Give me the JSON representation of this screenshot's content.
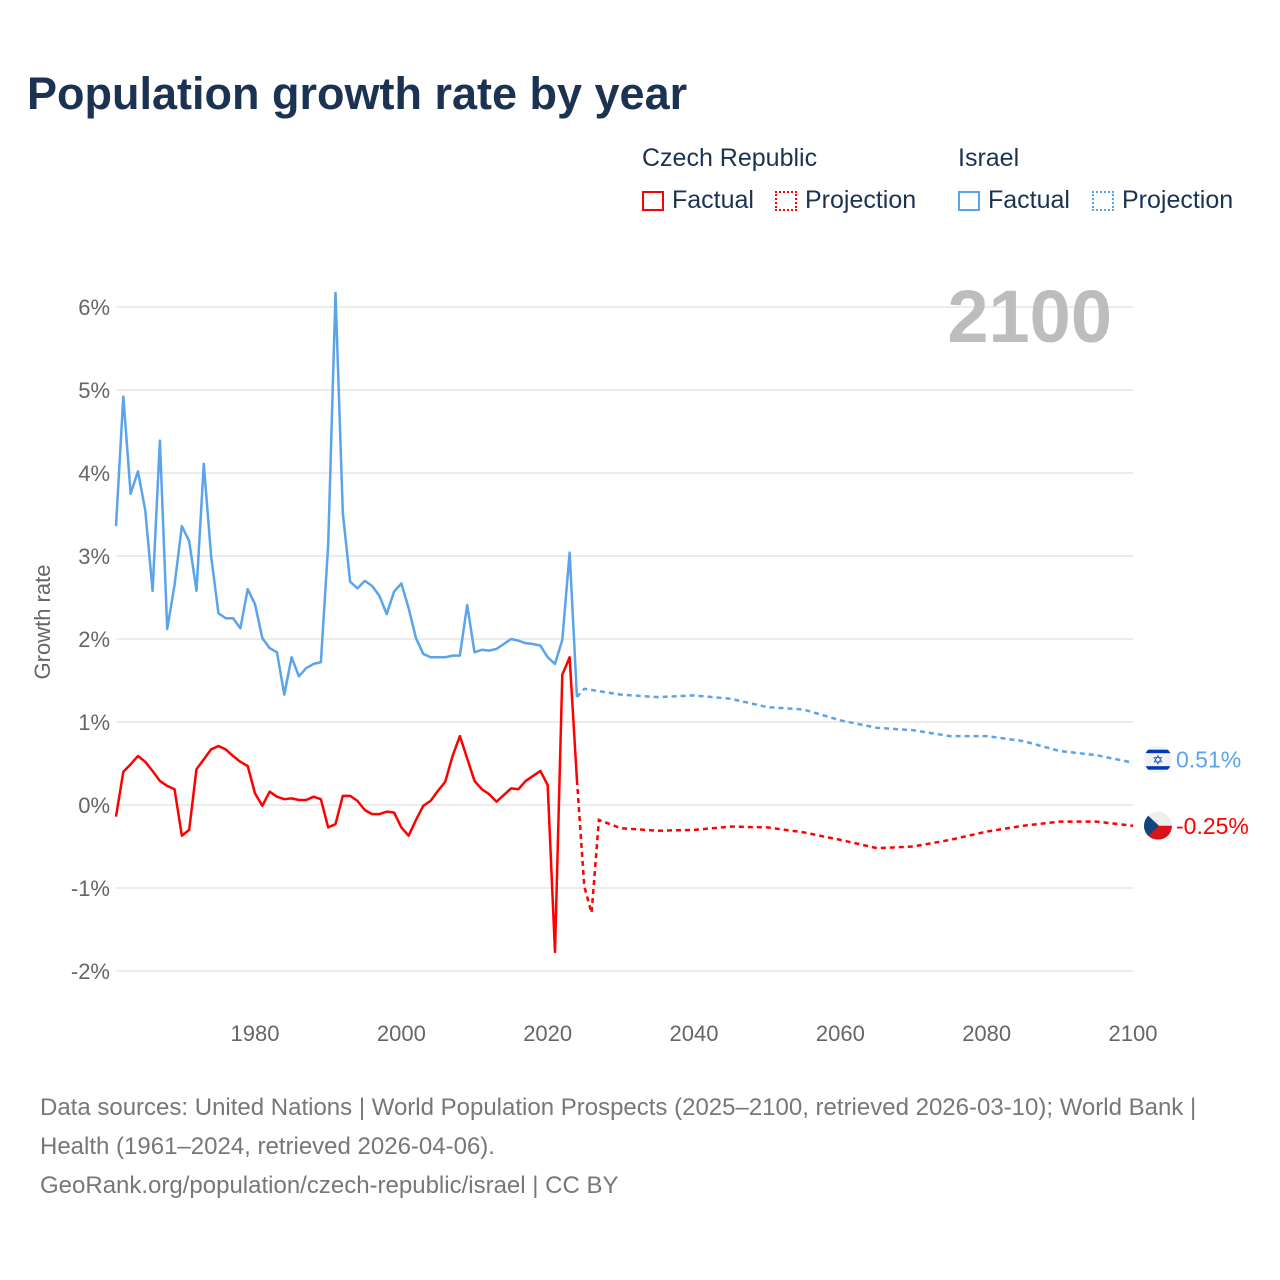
{
  "title": "Population growth rate by year",
  "legend": {
    "groups": [
      {
        "name": "Czech Republic",
        "color": "#ff0000",
        "factual": "Factual",
        "projection": "Projection"
      },
      {
        "name": "Israel",
        "color": "#5ba3ea",
        "factual": "Factual",
        "projection": "Projection"
      }
    ]
  },
  "year_watermark": "2100",
  "source": {
    "line1": "Data sources: United Nations | World Population Prospects (2025–2100, retrieved 2026-03-10); World Bank | Health (1961–2024, retrieved 2026-04-06).",
    "line2": "GeoRank.org/population/czech-republic/israel | CC BY"
  },
  "chart_data": {
    "type": "line",
    "title": "Population growth rate by year",
    "xlabel": "",
    "ylabel": "Growth rate",
    "xlim": [
      1961,
      2100
    ],
    "ylim": [
      -2.4,
      6.4
    ],
    "x_ticks": [
      1980,
      2000,
      2020,
      2040,
      2060,
      2080,
      2100
    ],
    "y_ticks": [
      -2,
      -1,
      0,
      1,
      2,
      3,
      4,
      5,
      6
    ],
    "y_tick_labels": [
      "-2%",
      "-1%",
      "0%",
      "1%",
      "2%",
      "3%",
      "4%",
      "5%",
      "6%"
    ],
    "grid": true,
    "series": [
      {
        "name": "Czech Republic",
        "color": "#ff0000",
        "end_label": "-0.25%",
        "flag": "czech-flag",
        "factual": {
          "start_year": 1961,
          "values": [
            -0.14,
            0.4,
            0.49,
            0.59,
            0.52,
            0.41,
            0.29,
            0.23,
            0.19,
            -0.37,
            -0.3,
            0.43,
            0.55,
            0.67,
            0.71,
            0.67,
            0.59,
            0.52,
            0.47,
            0.14,
            -0.01,
            0.16,
            0.1,
            0.07,
            0.08,
            0.06,
            0.06,
            0.1,
            0.07,
            -0.27,
            -0.23,
            0.11,
            0.11,
            0.05,
            -0.06,
            -0.11,
            -0.11,
            -0.08,
            -0.09,
            -0.27,
            -0.37,
            -0.18,
            -0.01,
            0.05,
            0.17,
            0.28,
            0.59,
            0.83,
            0.56,
            0.29,
            0.19,
            0.13,
            0.04,
            0.12,
            0.2,
            0.19,
            0.29,
            0.35,
            0.41,
            0.24,
            -1.77,
            1.57,
            1.78,
            0.3
          ]
        },
        "projection": {
          "years": [
            2024,
            2025,
            2026,
            2027,
            2030,
            2035,
            2040,
            2045,
            2050,
            2055,
            2060,
            2065,
            2070,
            2075,
            2080,
            2085,
            2090,
            2095,
            2100
          ],
          "values": [
            0.3,
            -0.98,
            -1.3,
            -0.18,
            -0.28,
            -0.31,
            -0.3,
            -0.26,
            -0.27,
            -0.33,
            -0.42,
            -0.52,
            -0.5,
            -0.42,
            -0.32,
            -0.25,
            -0.2,
            -0.2,
            -0.25
          ]
        }
      },
      {
        "name": "Israel",
        "color": "#5ba3ea",
        "end_label": "0.51%",
        "flag": "israel-flag",
        "factual": {
          "start_year": 1961,
          "values": [
            3.36,
            4.92,
            3.75,
            4.02,
            3.55,
            2.58,
            4.39,
            2.12,
            2.65,
            3.36,
            3.18,
            2.58,
            4.11,
            3.0,
            2.31,
            2.25,
            2.25,
            2.13,
            2.6,
            2.42,
            2.01,
            1.89,
            1.84,
            1.33,
            1.78,
            1.55,
            1.65,
            1.7,
            1.72,
            3.13,
            6.17,
            3.52,
            2.69,
            2.61,
            2.7,
            2.64,
            2.52,
            2.3,
            2.57,
            2.67,
            2.37,
            2.01,
            1.82,
            1.78,
            1.78,
            1.78,
            1.8,
            1.8,
            2.41,
            1.84,
            1.87,
            1.86,
            1.88,
            1.94,
            2.0,
            1.98,
            1.95,
            1.94,
            1.92,
            1.78,
            1.7,
            1.99,
            3.04,
            1.3
          ]
        },
        "projection": {
          "years": [
            2024,
            2025,
            2030,
            2035,
            2040,
            2045,
            2050,
            2055,
            2060,
            2065,
            2070,
            2075,
            2080,
            2085,
            2090,
            2095,
            2100
          ],
          "values": [
            1.3,
            1.4,
            1.33,
            1.3,
            1.32,
            1.28,
            1.18,
            1.15,
            1.02,
            0.93,
            0.9,
            0.83,
            0.83,
            0.77,
            0.65,
            0.6,
            0.51
          ]
        }
      }
    ]
  }
}
